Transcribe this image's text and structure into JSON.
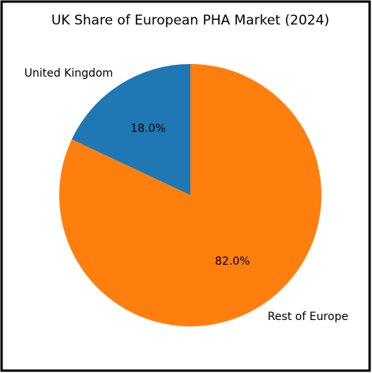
{
  "chart_data": {
    "type": "pie",
    "title": "UK Share of European PHA Market (2024)",
    "categories": [
      "United Kingdom",
      "Rest of Europe"
    ],
    "values": [
      18,
      82
    ],
    "value_labels": [
      "18.0%",
      "82.0%"
    ],
    "colors": [
      "#1f77b4",
      "#ff7f0e"
    ],
    "start_angle": 90,
    "counterclock": true
  }
}
